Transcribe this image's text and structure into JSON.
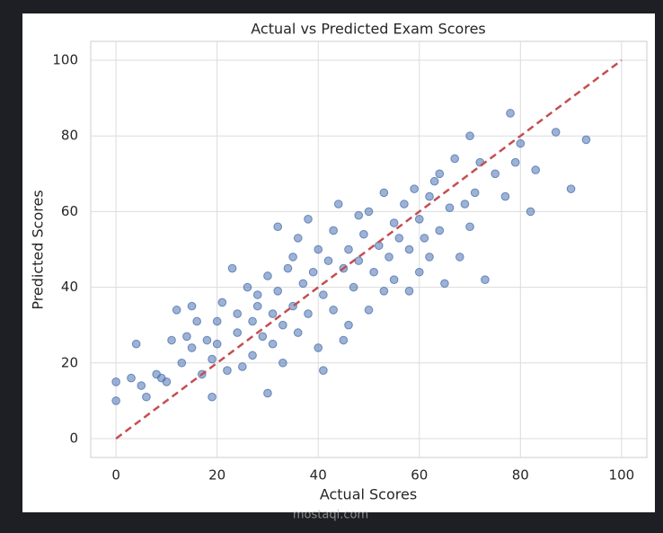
{
  "chart_data": {
    "type": "scatter",
    "title": "Actual vs Predicted Exam Scores",
    "x_label": "Actual Scores",
    "y_label": "Predicted Scores",
    "series": [
      {
        "color": "#4c72b0",
        "x": [
          0,
          0,
          3,
          4,
          5,
          6,
          8,
          9,
          10,
          11,
          12,
          13,
          14,
          15,
          15,
          16,
          17,
          18,
          19,
          19,
          20,
          20,
          21,
          22,
          23,
          24,
          24,
          25,
          26,
          27,
          27,
          28,
          28,
          29,
          30,
          30,
          31,
          31,
          32,
          32,
          33,
          33,
          34,
          35,
          35,
          36,
          36,
          37,
          38,
          38,
          39,
          40,
          40,
          41,
          41,
          42,
          43,
          43,
          44,
          45,
          45,
          46,
          46,
          47,
          48,
          48,
          49,
          50,
          50,
          51,
          52,
          53,
          53,
          54,
          55,
          55,
          56,
          57,
          58,
          58,
          59,
          60,
          60,
          61,
          62,
          62,
          63,
          64,
          64,
          65,
          66,
          67,
          68,
          69,
          70,
          70,
          71,
          72,
          73,
          75,
          77,
          78,
          79,
          80,
          82,
          83,
          87,
          90,
          93
        ],
        "values": [
          15,
          10,
          16,
          25,
          14,
          11,
          17,
          16,
          15,
          26,
          34,
          20,
          27,
          24,
          35,
          31,
          17,
          26,
          11,
          21,
          25,
          31,
          36,
          18,
          45,
          28,
          33,
          19,
          40,
          22,
          31,
          35,
          38,
          27,
          12,
          43,
          33,
          25,
          56,
          39,
          30,
          20,
          45,
          35,
          48,
          53,
          28,
          41,
          58,
          33,
          44,
          24,
          50,
          18,
          38,
          47,
          55,
          34,
          62,
          26,
          45,
          50,
          30,
          40,
          59,
          47,
          54,
          34,
          60,
          44,
          51,
          65,
          39,
          48,
          57,
          42,
          53,
          62,
          39,
          50,
          66,
          44,
          58,
          53,
          48,
          64,
          68,
          55,
          70,
          41,
          61,
          74,
          48,
          62,
          80,
          56,
          65,
          73,
          42,
          70,
          64,
          86,
          73,
          78,
          60,
          71,
          81,
          66,
          79
        ]
      }
    ],
    "reference_line": {
      "x": [
        0,
        100
      ],
      "y": [
        0,
        100
      ],
      "color": "#c44e52"
    },
    "xlim": [
      -5,
      105
    ],
    "ylim": [
      -5,
      105
    ],
    "xticks": [
      0,
      20,
      40,
      60,
      80,
      100
    ],
    "yticks": [
      0,
      20,
      40,
      60,
      80,
      100
    ],
    "grid": true,
    "watermark": "mostaql.com"
  }
}
